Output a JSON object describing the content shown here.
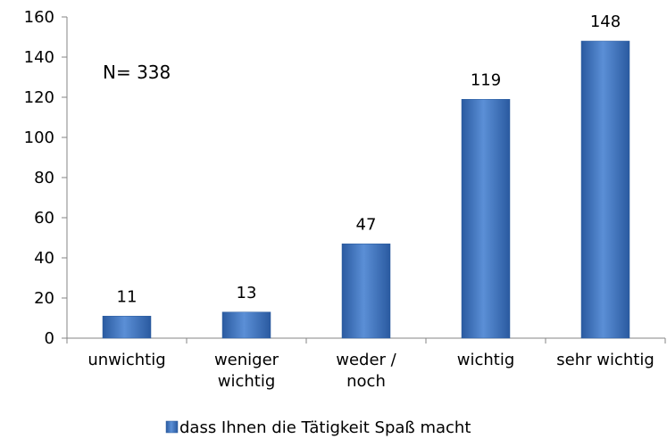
{
  "chart_data": {
    "type": "bar",
    "categories": [
      "unwichtig",
      "weniger\nwichtig",
      "weder /\nnoch",
      "wichtig",
      "sehr wichtig"
    ],
    "series": [
      {
        "name": "dass Ihnen die Tätigkeit Spaß macht",
        "color": "#3c72c0",
        "values": [
          11,
          13,
          47,
          119,
          148
        ]
      }
    ],
    "ylim": [
      0,
      160
    ],
    "yticks": [
      0,
      20,
      40,
      60,
      80,
      100,
      120,
      140,
      160
    ],
    "grid": false,
    "annotations": [
      "N= 338"
    ],
    "legend": "bottom"
  }
}
